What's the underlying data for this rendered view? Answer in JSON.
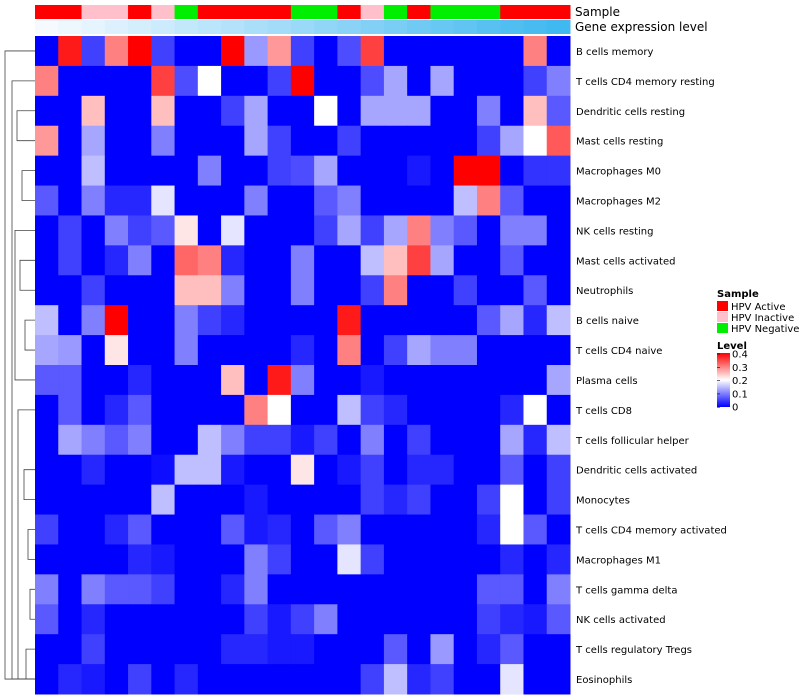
{
  "chart_data": {
    "type": "heatmap",
    "annotation_labels": [
      "Sample",
      "Gene expression level"
    ],
    "rows": [
      "B cells memory",
      "T cells CD4 memory resting",
      "Dendritic cells resting",
      "Mast cells resting",
      "Macrophages M0",
      "Macrophages M2",
      "NK cells resting",
      "Mast cells activated",
      "Neutrophils",
      "B cells naive",
      "T cells CD4 naive",
      "Plasma cells",
      "T cells CD8",
      "T cells follicular helper",
      "Dendritic cells activated",
      "Monocytes",
      "T cells CD4 memory activated",
      "Macrophages M1",
      "T cells gamma delta",
      "NK cells activated",
      "T cells regulatory  Tregs",
      "Eosinophils"
    ],
    "sample_groups": [
      "A",
      "A",
      "I",
      "I",
      "A",
      "I",
      "N",
      "A",
      "A",
      "A",
      "A",
      "N",
      "N",
      "A",
      "I",
      "N",
      "A",
      "N",
      "N",
      "N",
      "A",
      "A",
      "A"
    ],
    "values": [
      [
        0.0,
        0.38,
        0.05,
        0.3,
        0.4,
        0.05,
        0.0,
        0.0,
        0.4,
        0.12,
        0.28,
        0.05,
        0.0,
        0.06,
        0.35,
        0.0,
        0.0,
        0.0,
        0.0,
        0.0,
        0.0,
        0.3,
        0.0
      ],
      [
        0.3,
        0.0,
        0.0,
        0.0,
        0.0,
        0.35,
        0.06,
        0.2,
        0.0,
        0.0,
        0.05,
        0.4,
        0.0,
        0.0,
        0.06,
        0.13,
        0.0,
        0.13,
        0.0,
        0.0,
        0.0,
        0.05,
        0.1
      ],
      [
        0.0,
        0.0,
        0.25,
        0.0,
        0.0,
        0.25,
        0.0,
        0.0,
        0.05,
        0.13,
        0.0,
        0.0,
        0.2,
        0.0,
        0.13,
        0.13,
        0.13,
        0.0,
        0.0,
        0.1,
        0.0,
        0.25,
        0.07
      ],
      [
        0.28,
        0.0,
        0.13,
        0.0,
        0.0,
        0.1,
        0.0,
        0.0,
        0.0,
        0.13,
        0.05,
        0.0,
        0.0,
        0.05,
        0.0,
        0.0,
        0.0,
        0.0,
        0.0,
        0.05,
        0.13,
        0.2,
        0.33
      ],
      [
        0.0,
        0.0,
        0.15,
        0.0,
        0.0,
        0.0,
        0.0,
        0.1,
        0.0,
        0.0,
        0.05,
        0.06,
        0.13,
        0.0,
        0.0,
        0.0,
        0.02,
        0.0,
        0.4,
        0.4,
        0.0,
        0.04,
        0.04
      ],
      [
        0.07,
        0.0,
        0.1,
        0.03,
        0.03,
        0.18,
        0.0,
        0.0,
        0.0,
        0.1,
        0.0,
        0.0,
        0.07,
        0.1,
        0.0,
        0.0,
        0.0,
        0.0,
        0.15,
        0.3,
        0.07,
        0.0,
        0.0
      ],
      [
        0.0,
        0.05,
        0.0,
        0.1,
        0.05,
        0.07,
        0.22,
        0.0,
        0.18,
        0.0,
        0.0,
        0.0,
        0.05,
        0.13,
        0.05,
        0.13,
        0.3,
        0.1,
        0.07,
        0.0,
        0.1,
        0.1,
        0.0
      ],
      [
        0.0,
        0.05,
        0.0,
        0.03,
        0.1,
        0.0,
        0.32,
        0.3,
        0.03,
        0.0,
        0.0,
        0.1,
        0.0,
        0.0,
        0.15,
        0.25,
        0.35,
        0.13,
        0.0,
        0.0,
        0.07,
        0.0,
        0.0
      ],
      [
        0.0,
        0.0,
        0.05,
        0.0,
        0.0,
        0.0,
        0.25,
        0.25,
        0.1,
        0.0,
        0.0,
        0.1,
        0.0,
        0.0,
        0.05,
        0.3,
        0.0,
        0.0,
        0.05,
        0.0,
        0.0,
        0.07,
        0.0
      ],
      [
        0.15,
        0.0,
        0.1,
        0.4,
        0.0,
        0.0,
        0.1,
        0.05,
        0.03,
        0.0,
        0.0,
        0.0,
        0.0,
        0.38,
        0.0,
        0.0,
        0.0,
        0.0,
        0.0,
        0.07,
        0.13,
        0.03,
        0.15
      ],
      [
        0.13,
        0.12,
        0.0,
        0.22,
        0.0,
        0.0,
        0.1,
        0.0,
        0.0,
        0.0,
        0.0,
        0.03,
        0.0,
        0.3,
        0.0,
        0.05,
        0.13,
        0.1,
        0.1,
        0.0,
        0.0,
        0.0,
        0.0
      ],
      [
        0.07,
        0.07,
        0.0,
        0.0,
        0.03,
        0.0,
        0.0,
        0.0,
        0.25,
        0.0,
        0.38,
        0.1,
        0.0,
        0.0,
        0.02,
        0.0,
        0.0,
        0.0,
        0.0,
        0.0,
        0.0,
        0.0,
        0.13
      ],
      [
        0.0,
        0.07,
        0.0,
        0.03,
        0.07,
        0.0,
        0.0,
        0.0,
        0.0,
        0.3,
        0.2,
        0.0,
        0.0,
        0.15,
        0.05,
        0.03,
        0.0,
        0.0,
        0.0,
        0.0,
        0.03,
        0.2,
        0.0
      ],
      [
        0.0,
        0.13,
        0.1,
        0.07,
        0.1,
        0.0,
        0.0,
        0.15,
        0.1,
        0.05,
        0.05,
        0.02,
        0.05,
        0.0,
        0.1,
        0.0,
        0.05,
        0.0,
        0.0,
        0.0,
        0.13,
        0.03,
        0.15
      ],
      [
        0.0,
        0.0,
        0.03,
        0.0,
        0.0,
        0.01,
        0.15,
        0.15,
        0.02,
        0.0,
        0.0,
        0.22,
        0.0,
        0.02,
        0.05,
        0.0,
        0.03,
        0.03,
        0.0,
        0.0,
        0.07,
        0.0,
        0.05
      ],
      [
        0.0,
        0.0,
        0.0,
        0.0,
        0.0,
        0.15,
        0.0,
        0.0,
        0.0,
        0.02,
        0.0,
        0.0,
        0.0,
        0.0,
        0.05,
        0.03,
        0.05,
        0.0,
        0.0,
        0.05,
        0.2,
        0.0,
        0.05
      ],
      [
        0.05,
        0.0,
        0.0,
        0.03,
        0.07,
        0.0,
        0.0,
        0.0,
        0.07,
        0.02,
        0.03,
        0.0,
        0.07,
        0.1,
        0.0,
        0.0,
        0.0,
        0.0,
        0.0,
        0.03,
        0.2,
        0.07,
        0.0
      ],
      [
        0.0,
        0.0,
        0.0,
        0.0,
        0.03,
        0.02,
        0.0,
        0.0,
        0.0,
        0.1,
        0.05,
        0.0,
        0.0,
        0.18,
        0.05,
        0.0,
        0.0,
        0.0,
        0.0,
        0.0,
        0.03,
        0.0,
        0.03
      ],
      [
        0.1,
        0.0,
        0.1,
        0.07,
        0.07,
        0.05,
        0.0,
        0.0,
        0.03,
        0.1,
        0.0,
        0.0,
        0.0,
        0.0,
        0.0,
        0.0,
        0.0,
        0.0,
        0.0,
        0.07,
        0.07,
        0.0,
        0.1
      ],
      [
        0.07,
        0.0,
        0.03,
        0.0,
        0.0,
        0.0,
        0.0,
        0.0,
        0.0,
        0.05,
        0.02,
        0.05,
        0.1,
        0.0,
        0.0,
        0.0,
        0.0,
        0.0,
        0.0,
        0.05,
        0.03,
        0.02,
        0.07
      ],
      [
        0.0,
        0.0,
        0.05,
        0.0,
        0.0,
        0.0,
        0.0,
        0.0,
        0.03,
        0.03,
        0.02,
        0.02,
        0.0,
        0.0,
        0.0,
        0.07,
        0.0,
        0.12,
        0.0,
        0.03,
        0.07,
        0.0,
        0.0
      ],
      [
        0.0,
        0.03,
        0.02,
        0.0,
        0.05,
        0.0,
        0.03,
        0.0,
        0.0,
        0.0,
        0.0,
        0.0,
        0.0,
        0.0,
        0.05,
        0.15,
        0.03,
        0.05,
        0.0,
        0.0,
        0.18,
        0.0,
        0.0
      ]
    ],
    "legend": {
      "sample_title": "Sample",
      "sample_entries": [
        {
          "key": "A",
          "label": "HPV Active",
          "color": "#ff0000"
        },
        {
          "key": "I",
          "label": "HPV Inactive",
          "color": "#ffc0cb"
        },
        {
          "key": "N",
          "label": "HPV Negative",
          "color": "#00ee00"
        }
      ],
      "level_title": "Level",
      "level_ticks": [
        "0.4",
        "0.3",
        "0.2",
        "0.1",
        "0"
      ],
      "level_range": [
        0,
        0.4
      ]
    },
    "colors": {
      "low": "#0000ff",
      "mid": "#ffffff",
      "high": "#ff0000",
      "gene_bar_start": "#f5faff",
      "gene_bar_end": "#40b8f0"
    }
  }
}
